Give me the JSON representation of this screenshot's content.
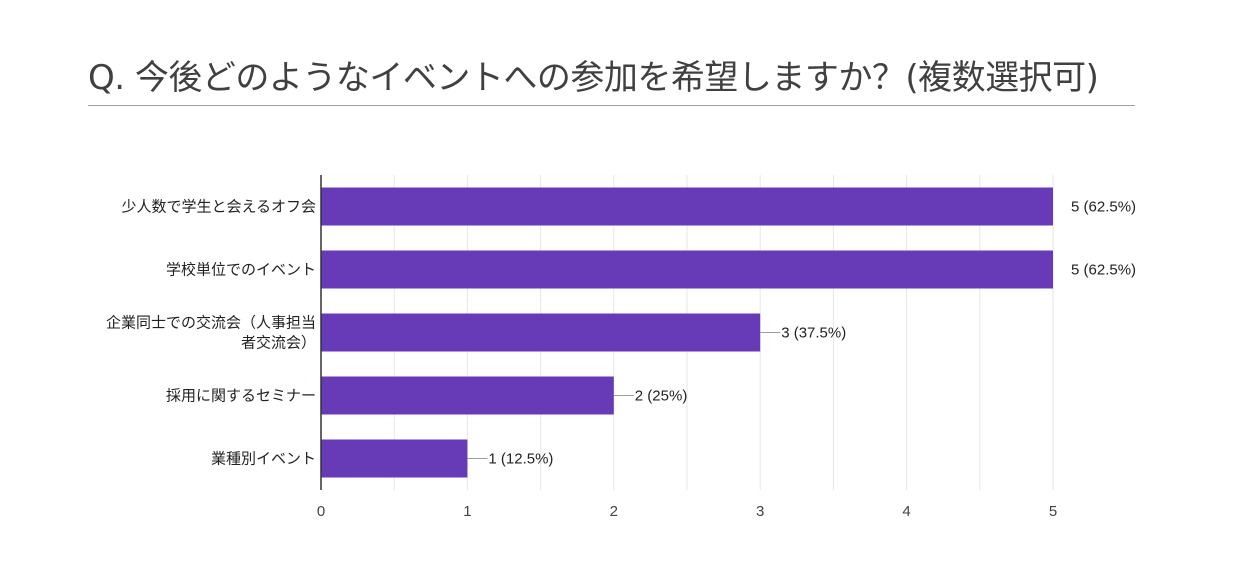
{
  "title": "Q. 今後どのようなイベントへの参加を希望しますか？(複数選択可)",
  "chart_data": {
    "type": "bar",
    "orientation": "horizontal",
    "categories": [
      [
        "少人数で学生と会えるオフ会"
      ],
      [
        "学校単位でのイベント"
      ],
      [
        "企業同士での交流会（人事担当",
        "者交流会）"
      ],
      [
        "採用に関するセミナー"
      ],
      [
        "業種別イベント"
      ]
    ],
    "values": [
      5,
      5,
      3,
      2,
      1
    ],
    "value_labels": [
      "5 (62.5%)",
      "5 (62.5%)",
      "3 (37.5%)",
      "2 (25%)",
      "1 (12.5%)"
    ],
    "xlim": [
      0,
      5
    ],
    "xticks": [
      0,
      1,
      2,
      3,
      4,
      5
    ],
    "grid": true,
    "bar_color": "#673ab7",
    "grid_color": "#e6e6e6",
    "axis_color": "#333333"
  }
}
